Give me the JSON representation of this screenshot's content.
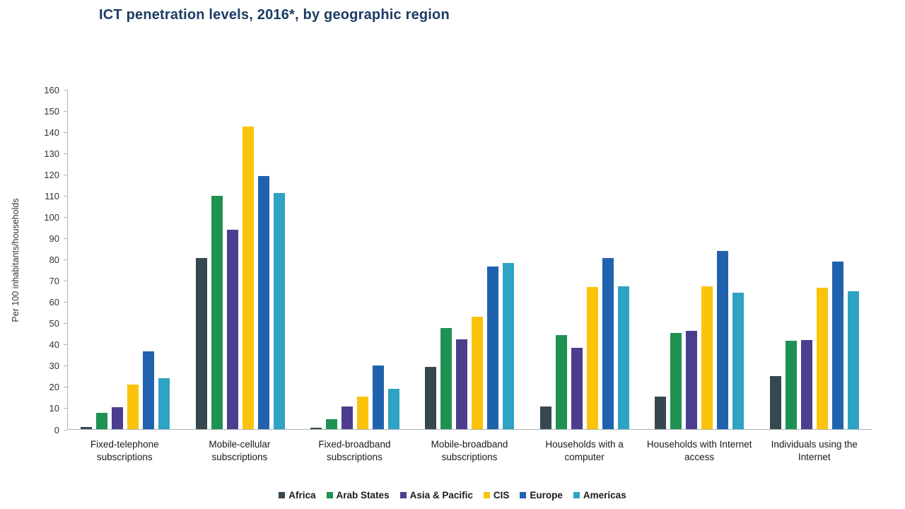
{
  "title": "ICT penetration levels, 2016*, by geographic region",
  "chart_data": {
    "type": "bar",
    "title": "ICT penetration levels, 2016*, by geographic region",
    "xlabel": "",
    "ylabel": "Per 100 inhabitants/households",
    "ylim": [
      0,
      160
    ],
    "ytick_step": 10,
    "grid": false,
    "legend_position": "bottom",
    "categories": [
      "Fixed-telephone subscriptions",
      "Mobile-cellular subscriptions",
      "Fixed-broadband subscriptions",
      "Mobile-broadband subscriptions",
      "Households with a computer",
      "Households with Internet access",
      "Individuals using the Internet"
    ],
    "series": [
      {
        "name": "Africa",
        "color": "#37474f",
        "values": [
          1.0,
          80.8,
          0.8,
          29.3,
          10.7,
          15.4,
          25.1
        ]
      },
      {
        "name": "Arab States",
        "color": "#1f9152",
        "values": [
          7.8,
          109.9,
          4.7,
          47.6,
          44.4,
          45.5,
          41.6
        ]
      },
      {
        "name": "Asia & Pacific",
        "color": "#4c3d8f",
        "values": [
          10.4,
          94.1,
          10.7,
          42.3,
          38.2,
          46.4,
          41.9
        ]
      },
      {
        "name": "CIS",
        "color": "#fcc30b",
        "values": [
          20.9,
          142.7,
          15.4,
          52.9,
          66.9,
          67.3,
          66.6
        ]
      },
      {
        "name": "Europe",
        "color": "#2062ae",
        "values": [
          36.6,
          119.5,
          29.9,
          76.6,
          80.6,
          84.0,
          79.1
        ]
      },
      {
        "name": "Americas",
        "color": "#2ea3c4",
        "values": [
          24.0,
          111.5,
          18.9,
          78.2,
          67.3,
          64.4,
          65.0
        ]
      }
    ]
  }
}
